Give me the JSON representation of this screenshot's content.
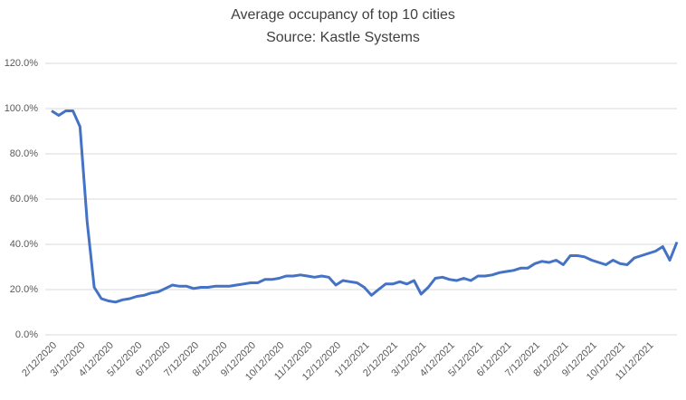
{
  "chart_data": {
    "type": "line",
    "title": "Average occupancy of top 10 cities",
    "subtitle": "Source: Kastle Systems",
    "categories": [
      "2/12/2020",
      null,
      null,
      null,
      "3/12/2020",
      null,
      null,
      null,
      "4/12/2020",
      null,
      null,
      null,
      "5/12/2020",
      null,
      null,
      null,
      "6/12/2020",
      null,
      null,
      null,
      "7/12/2020",
      null,
      null,
      null,
      "8/12/2020",
      null,
      null,
      null,
      "9/12/2020",
      null,
      null,
      null,
      "10/12/2020",
      null,
      null,
      null,
      "11/12/2020",
      null,
      null,
      null,
      "12/12/2020",
      null,
      null,
      null,
      "1/12/2021",
      null,
      null,
      null,
      "2/12/2021",
      null,
      null,
      null,
      "3/12/2021",
      null,
      null,
      null,
      "4/12/2021",
      null,
      null,
      null,
      "5/12/2021",
      null,
      null,
      null,
      "6/12/2021",
      null,
      null,
      null,
      "7/12/2021",
      null,
      null,
      null,
      "8/12/2021",
      null,
      null,
      null,
      "9/12/2021",
      null,
      null,
      null,
      "10/12/2021",
      null,
      null,
      null,
      "11/12/2021",
      null,
      null,
      null,
      null
    ],
    "values": [
      99,
      97,
      99,
      99,
      92,
      50,
      21,
      16,
      15,
      14.5,
      15.5,
      16,
      17,
      17.5,
      18.5,
      19,
      20.5,
      22,
      21.5,
      21.5,
      20.5,
      21,
      21,
      21.5,
      21.5,
      21.5,
      22,
      22.5,
      23,
      23,
      24.5,
      24.5,
      25,
      26,
      26,
      26.5,
      26,
      25.5,
      26,
      25.5,
      22,
      24,
      23.5,
      23,
      21,
      17.5,
      20,
      22.5,
      22.5,
      23.5,
      22.5,
      24,
      18,
      21,
      25,
      25.5,
      24.5,
      24,
      25,
      24,
      26,
      26,
      26.5,
      27.5,
      28,
      28.5,
      29.5,
      29.5,
      31.5,
      32.5,
      32,
      33,
      31,
      35,
      35,
      34.5,
      33,
      32,
      31,
      33,
      31.5,
      31,
      34,
      35,
      36,
      37,
      39,
      33,
      41
    ],
    "color": "#4472c4",
    "ylim": [
      0,
      120
    ],
    "yticks": [
      {
        "value": 0,
        "label": "0.0%"
      },
      {
        "value": 20,
        "label": "20.0%"
      },
      {
        "value": 40,
        "label": "40.0%"
      },
      {
        "value": 60,
        "label": "60.0%"
      },
      {
        "value": 80,
        "label": "80.0%"
      },
      {
        "value": 100,
        "label": "100.0%"
      },
      {
        "value": 120,
        "label": "120.0%"
      }
    ],
    "grid": true
  }
}
